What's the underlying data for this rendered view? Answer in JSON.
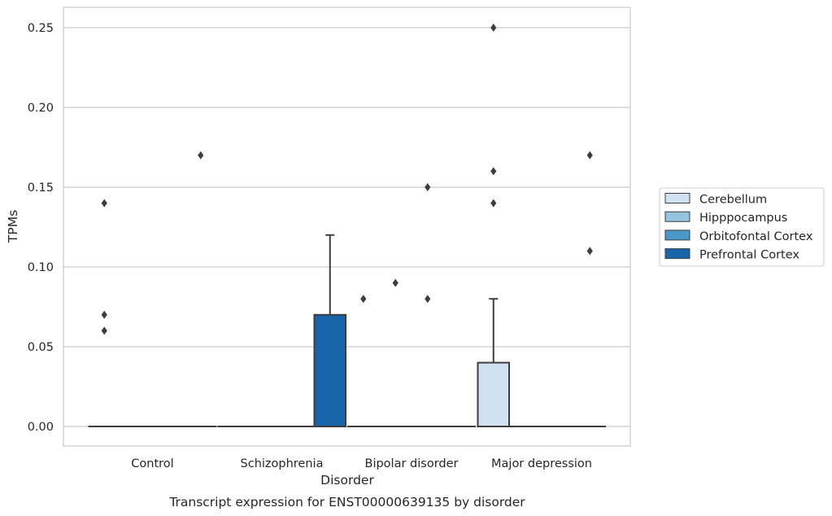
{
  "chart_data": {
    "type": "box",
    "title": "",
    "caption": "Transcript expression for ENST00000639135 by disorder",
    "xlabel": "Disorder",
    "ylabel": "TPMs",
    "ylim": [
      -0.012,
      0.262
    ],
    "yticks": [
      "0.00",
      "0.05",
      "0.10",
      "0.15",
      "0.20",
      "0.25"
    ],
    "ytick_values": [
      0,
      0.05,
      0.1,
      0.15,
      0.2,
      0.25
    ],
    "grid": "horizontal",
    "legend_placement": "right",
    "categories": [
      "Control",
      "Schizophrenia",
      "Bipolar disorder",
      "Major depression"
    ],
    "series": [
      {
        "name": "Cerebellum",
        "color": "#d0e1f2",
        "boxes": [
          {
            "q1": 0,
            "median": 0,
            "q3": 0,
            "whisker_low": 0,
            "whisker_high": 0,
            "outliers": [
              0.14,
              0.07,
              0.06
            ]
          },
          {
            "q1": 0,
            "median": 0,
            "q3": 0,
            "whisker_low": 0,
            "whisker_high": 0,
            "outliers": []
          },
          {
            "q1": 0,
            "median": 0,
            "q3": 0,
            "whisker_low": 0,
            "whisker_high": 0,
            "outliers": [
              0.08
            ]
          },
          {
            "q1": 0,
            "median": 0,
            "q3": 0.04,
            "whisker_low": 0,
            "whisker_high": 0.08,
            "outliers": [
              0.25,
              0.16,
              0.14
            ]
          }
        ]
      },
      {
        "name": "Hipppocampus",
        "color": "#94c4df",
        "boxes": [
          {
            "q1": 0,
            "median": 0,
            "q3": 0,
            "whisker_low": 0,
            "whisker_high": 0,
            "outliers": []
          },
          {
            "q1": 0,
            "median": 0,
            "q3": 0,
            "whisker_low": 0,
            "whisker_high": 0,
            "outliers": []
          },
          {
            "q1": 0,
            "median": 0,
            "q3": 0,
            "whisker_low": 0,
            "whisker_high": 0,
            "outliers": [
              0.09
            ]
          },
          {
            "q1": 0,
            "median": 0,
            "q3": 0,
            "whisker_low": 0,
            "whisker_high": 0,
            "outliers": []
          }
        ]
      },
      {
        "name": "Orbitofontal Cortex",
        "color": "#4a98c9",
        "boxes": [
          {
            "q1": 0,
            "median": 0,
            "q3": 0,
            "whisker_low": 0,
            "whisker_high": 0,
            "outliers": []
          },
          {
            "q1": 0,
            "median": 0,
            "q3": 0,
            "whisker_low": 0,
            "whisker_high": 0,
            "outliers": []
          },
          {
            "q1": 0,
            "median": 0,
            "q3": 0,
            "whisker_low": 0,
            "whisker_high": 0,
            "outliers": [
              0.15,
              0.08
            ]
          },
          {
            "q1": 0,
            "median": 0,
            "q3": 0,
            "whisker_low": 0,
            "whisker_high": 0,
            "outliers": []
          }
        ]
      },
      {
        "name": "Prefrontal Cortex",
        "color": "#1764ab",
        "boxes": [
          {
            "q1": 0,
            "median": 0,
            "q3": 0,
            "whisker_low": 0,
            "whisker_high": 0,
            "outliers": [
              0.17
            ]
          },
          {
            "q1": 0,
            "median": 0,
            "q3": 0.07,
            "whisker_low": 0,
            "whisker_high": 0.12,
            "outliers": []
          },
          {
            "q1": 0,
            "median": 0,
            "q3": 0,
            "whisker_low": 0,
            "whisker_high": 0,
            "outliers": []
          },
          {
            "q1": 0,
            "median": 0,
            "q3": 0,
            "whisker_low": 0,
            "whisker_high": 0,
            "outliers": [
              0.17,
              0.11
            ]
          }
        ]
      }
    ],
    "colors": {
      "grid": "#cccccc",
      "frame": "#cccccc",
      "edge": "#3d3d3d"
    }
  }
}
